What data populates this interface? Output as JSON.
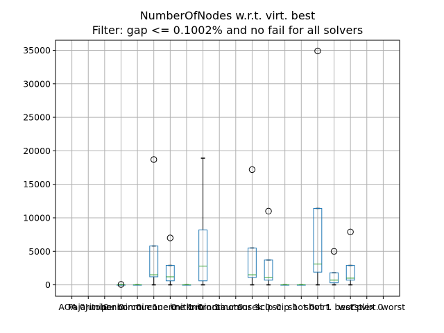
{
  "title_line1": "NumberOfNodes w.r.t. virt. best",
  "title_line2": "Filter: gap <= 0.1002% and no fail for all solvers",
  "chart_data": {
    "type": "box",
    "title": "NumberOfNodes w.r.t. virt. best\nFilter: gap <= 0.1002% and no fail for all solvers",
    "xlabel": "",
    "ylabel": "",
    "ylim": [
      -1700,
      36500
    ],
    "yticks": [
      0,
      5000,
      10000,
      15000,
      20000,
      25000,
      30000,
      35000
    ],
    "grid": true,
    "colors": {
      "box": "#1f77b4",
      "median": "#2ca02c",
      "whisker": "#000000",
      "grid": "#b0b0b0"
    },
    "categories": [
      "AOA 0",
      "Pajarito 0",
      "Juniper 0",
      "bonmin 0",
      "bonmin 1",
      "couenne 0",
      "couenne 1",
      "knitro 0",
      "knitro 1",
      "minotaur 0",
      "minotaur 1",
      "mosek 0",
      "scip 0",
      "scip 1",
      "shot 0",
      "shot 1",
      "virt. best",
      "worst",
      "Cplex 0",
      "virt. worst"
    ],
    "boxes": [
      null,
      null,
      null,
      {
        "whislo": 0,
        "q1": 0,
        "med": 0,
        "q3": 0,
        "whishi": 0,
        "fliers": [
          60
        ]
      },
      {
        "whislo": 0,
        "q1": 0,
        "med": 0,
        "q3": 0,
        "whishi": 0,
        "fliers": []
      },
      {
        "whislo": 0,
        "q1": 1200,
        "med": 1500,
        "q3": 5800,
        "whishi": 5800,
        "fliers": [
          18700
        ]
      },
      {
        "whislo": 0,
        "q1": 600,
        "med": 1200,
        "q3": 2900,
        "whishi": 2900,
        "fliers": [
          7000
        ]
      },
      {
        "whislo": 0,
        "q1": 0,
        "med": 0,
        "q3": 0,
        "whishi": 0,
        "fliers": []
      },
      {
        "whislo": 0,
        "q1": 600,
        "med": 2800,
        "q3": 8200,
        "whishi": 18900,
        "fliers": []
      },
      null,
      null,
      {
        "whislo": 0,
        "q1": 1100,
        "med": 1500,
        "q3": 5500,
        "whishi": 5500,
        "fliers": [
          17200
        ]
      },
      {
        "whislo": 0,
        "q1": 700,
        "med": 1100,
        "q3": 3700,
        "whishi": 3700,
        "fliers": [
          11000
        ]
      },
      {
        "whislo": 0,
        "q1": 0,
        "med": 0,
        "q3": 0,
        "whishi": 0,
        "fliers": []
      },
      {
        "whislo": 0,
        "q1": 0,
        "med": 0,
        "q3": 0,
        "whishi": 0,
        "fliers": []
      },
      {
        "whislo": 0,
        "q1": 1900,
        "med": 3100,
        "q3": 11400,
        "whishi": 11400,
        "fliers": [
          34900
        ]
      },
      {
        "whislo": 0,
        "q1": 300,
        "med": 700,
        "q3": 1800,
        "whishi": 1800,
        "fliers": [
          5000
        ]
      },
      {
        "whislo": 0,
        "q1": 700,
        "med": 1000,
        "q3": 2900,
        "whishi": 2900,
        "fliers": [
          7900
        ]
      },
      null,
      null
    ]
  }
}
